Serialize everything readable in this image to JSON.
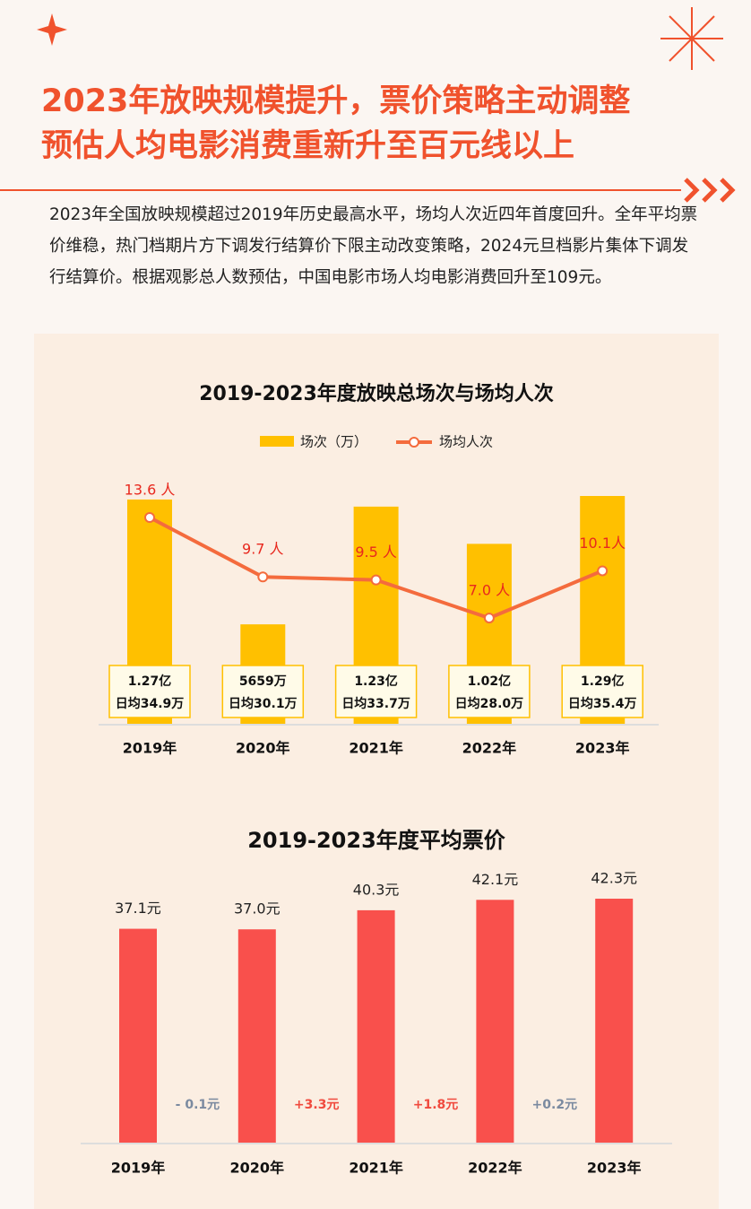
{
  "header": {
    "title": [
      "2023年放映规模提升，票价策略主动调整",
      "预估人均电影消费重新升至百元线以上"
    ],
    "description": "2023年全国放映规模超过2019年历史最高水平，场均人次近四年首度回升。全年平均票价维稳，热门档期片方下调发行结算价下限主动改变策略，2024元旦档影片集体下调发行结算价。根据观影总人数预估，中国电影市场人均电影消费回升至109元。"
  },
  "chart_data": [
    {
      "type": "combo",
      "title": "2019-2023年度放映总场次与场均人次",
      "categories": [
        "2019年",
        "2020年",
        "2021年",
        "2022年",
        "2023年"
      ],
      "series": [
        {
          "name": "场次（万）",
          "type": "bar",
          "color": "#ffc000",
          "values": [
            12700,
            5659,
            12300,
            10200,
            12900
          ],
          "value_labels": [
            "1.27亿",
            "5659万",
            "1.23亿",
            "1.02亿",
            "1.29亿"
          ],
          "daily_values": [
            34.9,
            30.1,
            33.7,
            28.0,
            35.4
          ],
          "daily_labels": [
            "日均34.9万",
            "日均30.1万",
            "日均33.7万",
            "日均28.0万",
            "日均35.4万"
          ]
        },
        {
          "name": "场均人次",
          "type": "line",
          "axis": "y2",
          "color": "#f46b3d",
          "values": [
            13.6,
            9.7,
            9.5,
            7.0,
            10.1
          ],
          "value_labels": [
            "13.6 人",
            "9.7 人",
            "9.5 人",
            "7.0 人",
            "10.1人"
          ]
        }
      ]
    },
    {
      "type": "bar",
      "title": "2019-2023年度平均票价",
      "categories": [
        "2019年",
        "2020年",
        "2021年",
        "2022年",
        "2023年"
      ],
      "color": "#f9504c",
      "values": [
        37.1,
        37.0,
        40.3,
        42.1,
        42.3
      ],
      "value_labels": [
        "37.1元",
        "37.0元",
        "40.3元",
        "42.1元",
        "42.3元"
      ],
      "changes": [
        -0.1,
        3.3,
        1.8,
        0.2
      ],
      "change_labels": [
        "- 0.1元",
        "+3.3元",
        "+1.8元",
        "+0.2元"
      ],
      "change_colors": [
        "#7b8aa0",
        "#f04a3e",
        "#f04a3e",
        "#7b8aa0"
      ]
    }
  ]
}
